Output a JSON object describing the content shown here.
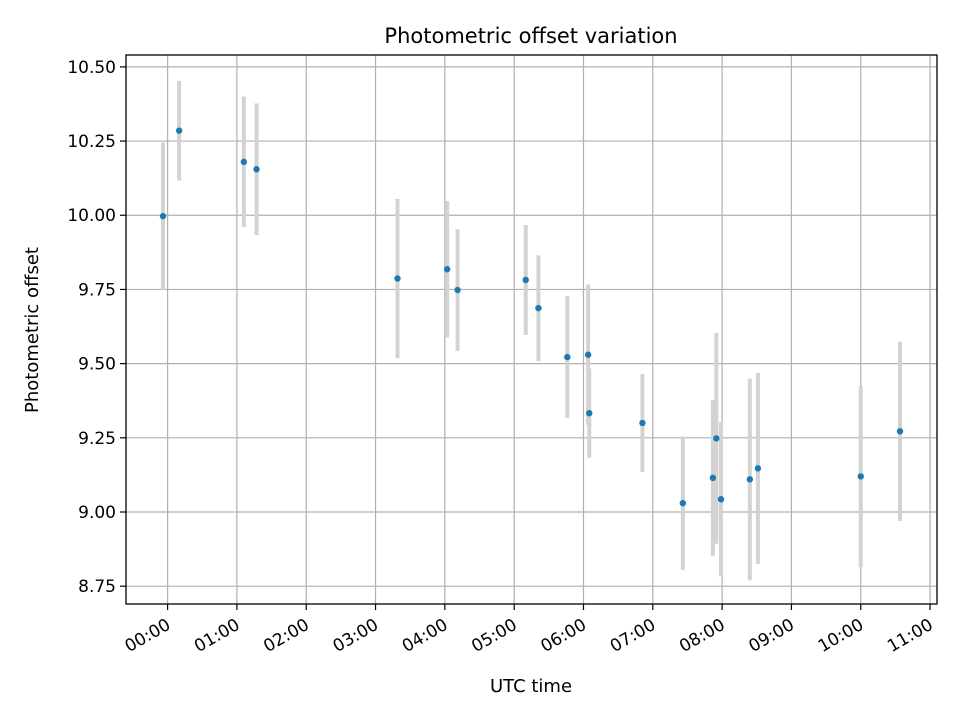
{
  "chart_data": {
    "type": "scatter",
    "title": "Photometric offset variation",
    "xlabel": "UTC time",
    "ylabel": "Photometric offset",
    "grid": true,
    "x_tick_labels": [
      "00:00",
      "01:00",
      "02:00",
      "03:00",
      "04:00",
      "05:00",
      "06:00",
      "07:00",
      "08:00",
      "09:00",
      "10:00",
      "11:00"
    ],
    "y_tick_labels": [
      "8.75",
      "9.00",
      "9.25",
      "9.50",
      "9.75",
      "10.00",
      "10.25",
      "10.50"
    ],
    "x_ticks_hours": [
      0,
      1,
      2,
      3,
      4,
      5,
      6,
      7,
      8,
      9,
      10,
      11
    ],
    "y_ticks": [
      8.75,
      9.0,
      9.25,
      9.5,
      9.75,
      10.0,
      10.25,
      10.5
    ],
    "xlim_hours": [
      -0.6,
      11.1
    ],
    "ylim": [
      8.69,
      10.54
    ],
    "point_color": "#1f77b4",
    "errorbar_color": "#d3d3d3",
    "points": [
      {
        "time": "23:56",
        "y": 9.997,
        "err": 0.248
      },
      {
        "time": "00:10",
        "y": 10.285,
        "err": 0.168
      },
      {
        "time": "01:06",
        "y": 10.18,
        "err": 0.22
      },
      {
        "time": "01:17",
        "y": 10.155,
        "err": 0.222
      },
      {
        "time": "03:19",
        "y": 9.787,
        "err": 0.268
      },
      {
        "time": "04:02",
        "y": 9.818,
        "err": 0.23
      },
      {
        "time": "04:11",
        "y": 9.748,
        "err": 0.205
      },
      {
        "time": "05:10",
        "y": 9.782,
        "err": 0.185
      },
      {
        "time": "05:21",
        "y": 9.687,
        "err": 0.178
      },
      {
        "time": "05:46",
        "y": 9.522,
        "err": 0.205
      },
      {
        "time": "06:04",
        "y": 9.53,
        "err": 0.237
      },
      {
        "time": "06:05",
        "y": 9.333,
        "err": 0.15
      },
      {
        "time": "06:51",
        "y": 9.3,
        "err": 0.165
      },
      {
        "time": "07:26",
        "y": 9.03,
        "err": 0.225
      },
      {
        "time": "07:52",
        "y": 9.115,
        "err": 0.263
      },
      {
        "time": "07:55",
        "y": 9.248,
        "err": 0.355
      },
      {
        "time": "07:59",
        "y": 9.043,
        "err": 0.26
      },
      {
        "time": "08:24",
        "y": 9.11,
        "err": 0.34
      },
      {
        "time": "08:31",
        "y": 9.147,
        "err": 0.322
      },
      {
        "time": "10:00",
        "y": 9.12,
        "err": 0.305
      },
      {
        "time": "10:34",
        "y": 9.272,
        "err": 0.302
      }
    ]
  }
}
